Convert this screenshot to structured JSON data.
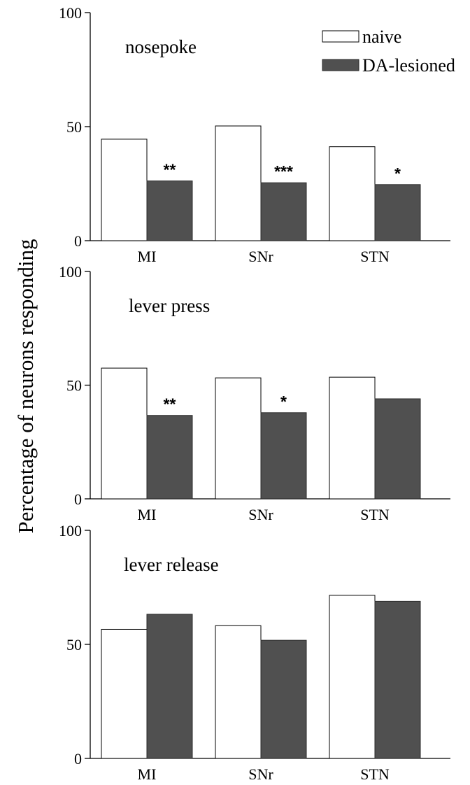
{
  "chart_data": {
    "type": "bar",
    "ylabel": "Percentage of neurons responding",
    "legend": {
      "placement": "top-right",
      "entries": [
        {
          "name": "naive",
          "color": "#ffffff"
        },
        {
          "name": "DA-lesioned",
          "color": "#505050"
        }
      ]
    },
    "panels": [
      {
        "title": "nosepoke",
        "categories": [
          "MI",
          "SNr",
          "STN"
        ],
        "ylim": [
          0,
          100
        ],
        "yticks": [
          "0",
          "50",
          "100"
        ],
        "series": [
          {
            "name": "naive",
            "values": [
              44.5,
              50.3,
              41.2
            ]
          },
          {
            "name": "DA-lesioned",
            "values": [
              26.2,
              25.4,
              24.6
            ]
          }
        ],
        "significance": [
          "**",
          "***",
          "*"
        ]
      },
      {
        "title": "lever press",
        "categories": [
          "MI",
          "SNr",
          "STN"
        ],
        "ylim": [
          0,
          100
        ],
        "yticks": [
          "0",
          "50",
          "100"
        ],
        "series": [
          {
            "name": "naive",
            "values": [
              57.5,
              53.2,
              53.5
            ]
          },
          {
            "name": "DA-lesioned",
            "values": [
              36.7,
              37.9,
              44.0
            ]
          }
        ],
        "significance": [
          "**",
          "*",
          ""
        ]
      },
      {
        "title": "lever release",
        "categories": [
          "MI",
          "SNr",
          "STN"
        ],
        "ylim": [
          0,
          100
        ],
        "yticks": [
          "0",
          "50",
          "100"
        ],
        "series": [
          {
            "name": "naive",
            "values": [
              56.6,
              58.2,
              71.5
            ]
          },
          {
            "name": "DA-lesioned",
            "values": [
              63.2,
              51.8,
              68.9
            ]
          }
        ],
        "significance": [
          "",
          "",
          ""
        ]
      }
    ]
  }
}
